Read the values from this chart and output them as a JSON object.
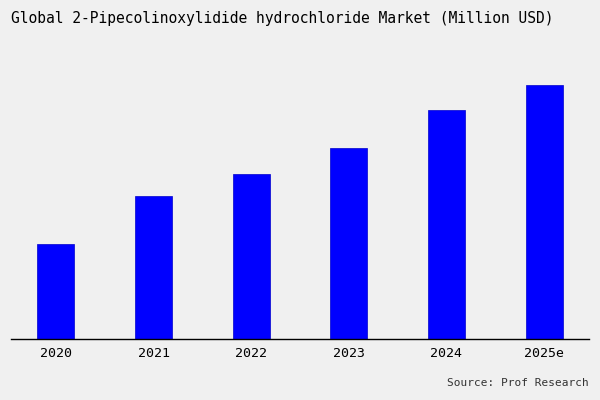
{
  "title": "Global 2-Pipecolinoxylidide hydrochloride Market (Million USD)",
  "categories": [
    "2020",
    "2021",
    "2022",
    "2023",
    "2024",
    "2025e"
  ],
  "values": [
    3.0,
    4.5,
    5.2,
    6.0,
    7.2,
    8.0
  ],
  "bar_color": "#0000FF",
  "bar_edge_color": "#0000CC",
  "background_color": "#f0f0f0",
  "title_fontsize": 10.5,
  "tick_fontsize": 9.5,
  "source_text": "Source: Prof Research",
  "source_fontsize": 8.0,
  "ylim": [
    0,
    9.5
  ],
  "bar_width": 0.38
}
